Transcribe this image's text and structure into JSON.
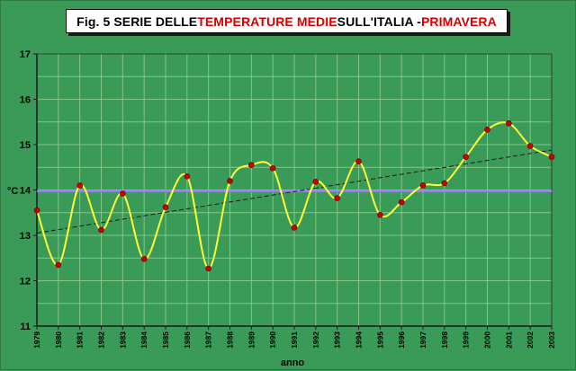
{
  "title": {
    "part1": "Fig. 5  SERIE DELLE ",
    "part2": "TEMPERATURE MEDIE",
    "part3": " SULL'ITALIA - ",
    "part4": "PRIMAVERA"
  },
  "colors": {
    "background": "#3a9a58",
    "grid": "#8fd08f",
    "line": "#ffff33",
    "marker": "#cc0000",
    "mean_line": "#a070ff",
    "trend": "#1a1a1a",
    "title_red": "#d40000"
  },
  "chart_data": {
    "type": "line",
    "title": "Fig. 5  SERIE DELLE TEMPERATURE MEDIE SULL'ITALIA - PRIMAVERA",
    "xlabel": "anno",
    "ylabel": "°C",
    "ylim": [
      11,
      17
    ],
    "yticks": [
      11,
      12,
      13,
      14,
      15,
      16,
      17
    ],
    "grid": true,
    "x": [
      "1979",
      "1980",
      "1981",
      "1982",
      "1983",
      "1984",
      "1985",
      "1986",
      "1987",
      "1988",
      "1989",
      "1990",
      "1991",
      "1992",
      "1993",
      "1994",
      "1995",
      "1996",
      "1997",
      "1998",
      "1999",
      "2000",
      "2001",
      "2002",
      "2003"
    ],
    "series": [
      {
        "values": [
          13.55,
          12.35,
          14.1,
          13.12,
          13.92,
          12.48,
          13.62,
          14.3,
          12.27,
          14.2,
          14.55,
          14.48,
          13.17,
          14.18,
          13.82,
          14.63,
          13.45,
          13.73,
          14.1,
          14.15,
          14.73,
          15.33,
          15.47,
          14.97,
          14.73
        ]
      }
    ],
    "mean_line": 13.97,
    "trend_line": {
      "start": 13.05,
      "end": 14.88
    }
  }
}
